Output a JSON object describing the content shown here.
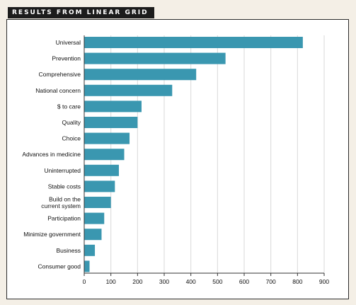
{
  "header": {
    "title": "RESULTS FROM LINEAR GRID"
  },
  "colors": {
    "bar": "#3a97b0",
    "grid": "#d9d9d9",
    "axis": "#333333"
  },
  "chart_data": {
    "type": "bar",
    "orientation": "horizontal",
    "title": "RESULTS FROM LINEAR GRID",
    "categories": [
      "Universal",
      "Prevention",
      "Comprehensive",
      "National concern",
      "$ to care",
      "Quality",
      "Choice",
      "Advances in medicine",
      "Uninterrupted",
      "Stable costs",
      [
        "Build on the",
        "current system"
      ],
      "Participation",
      "Minimize government",
      "Business",
      "Consumer good"
    ],
    "values": [
      820,
      530,
      420,
      330,
      215,
      200,
      170,
      150,
      130,
      115,
      100,
      75,
      65,
      40,
      20
    ],
    "xlim": [
      0,
      900
    ],
    "xticks": [
      0,
      100,
      200,
      300,
      400,
      500,
      600,
      700,
      800,
      900
    ],
    "grid": "vertical"
  }
}
